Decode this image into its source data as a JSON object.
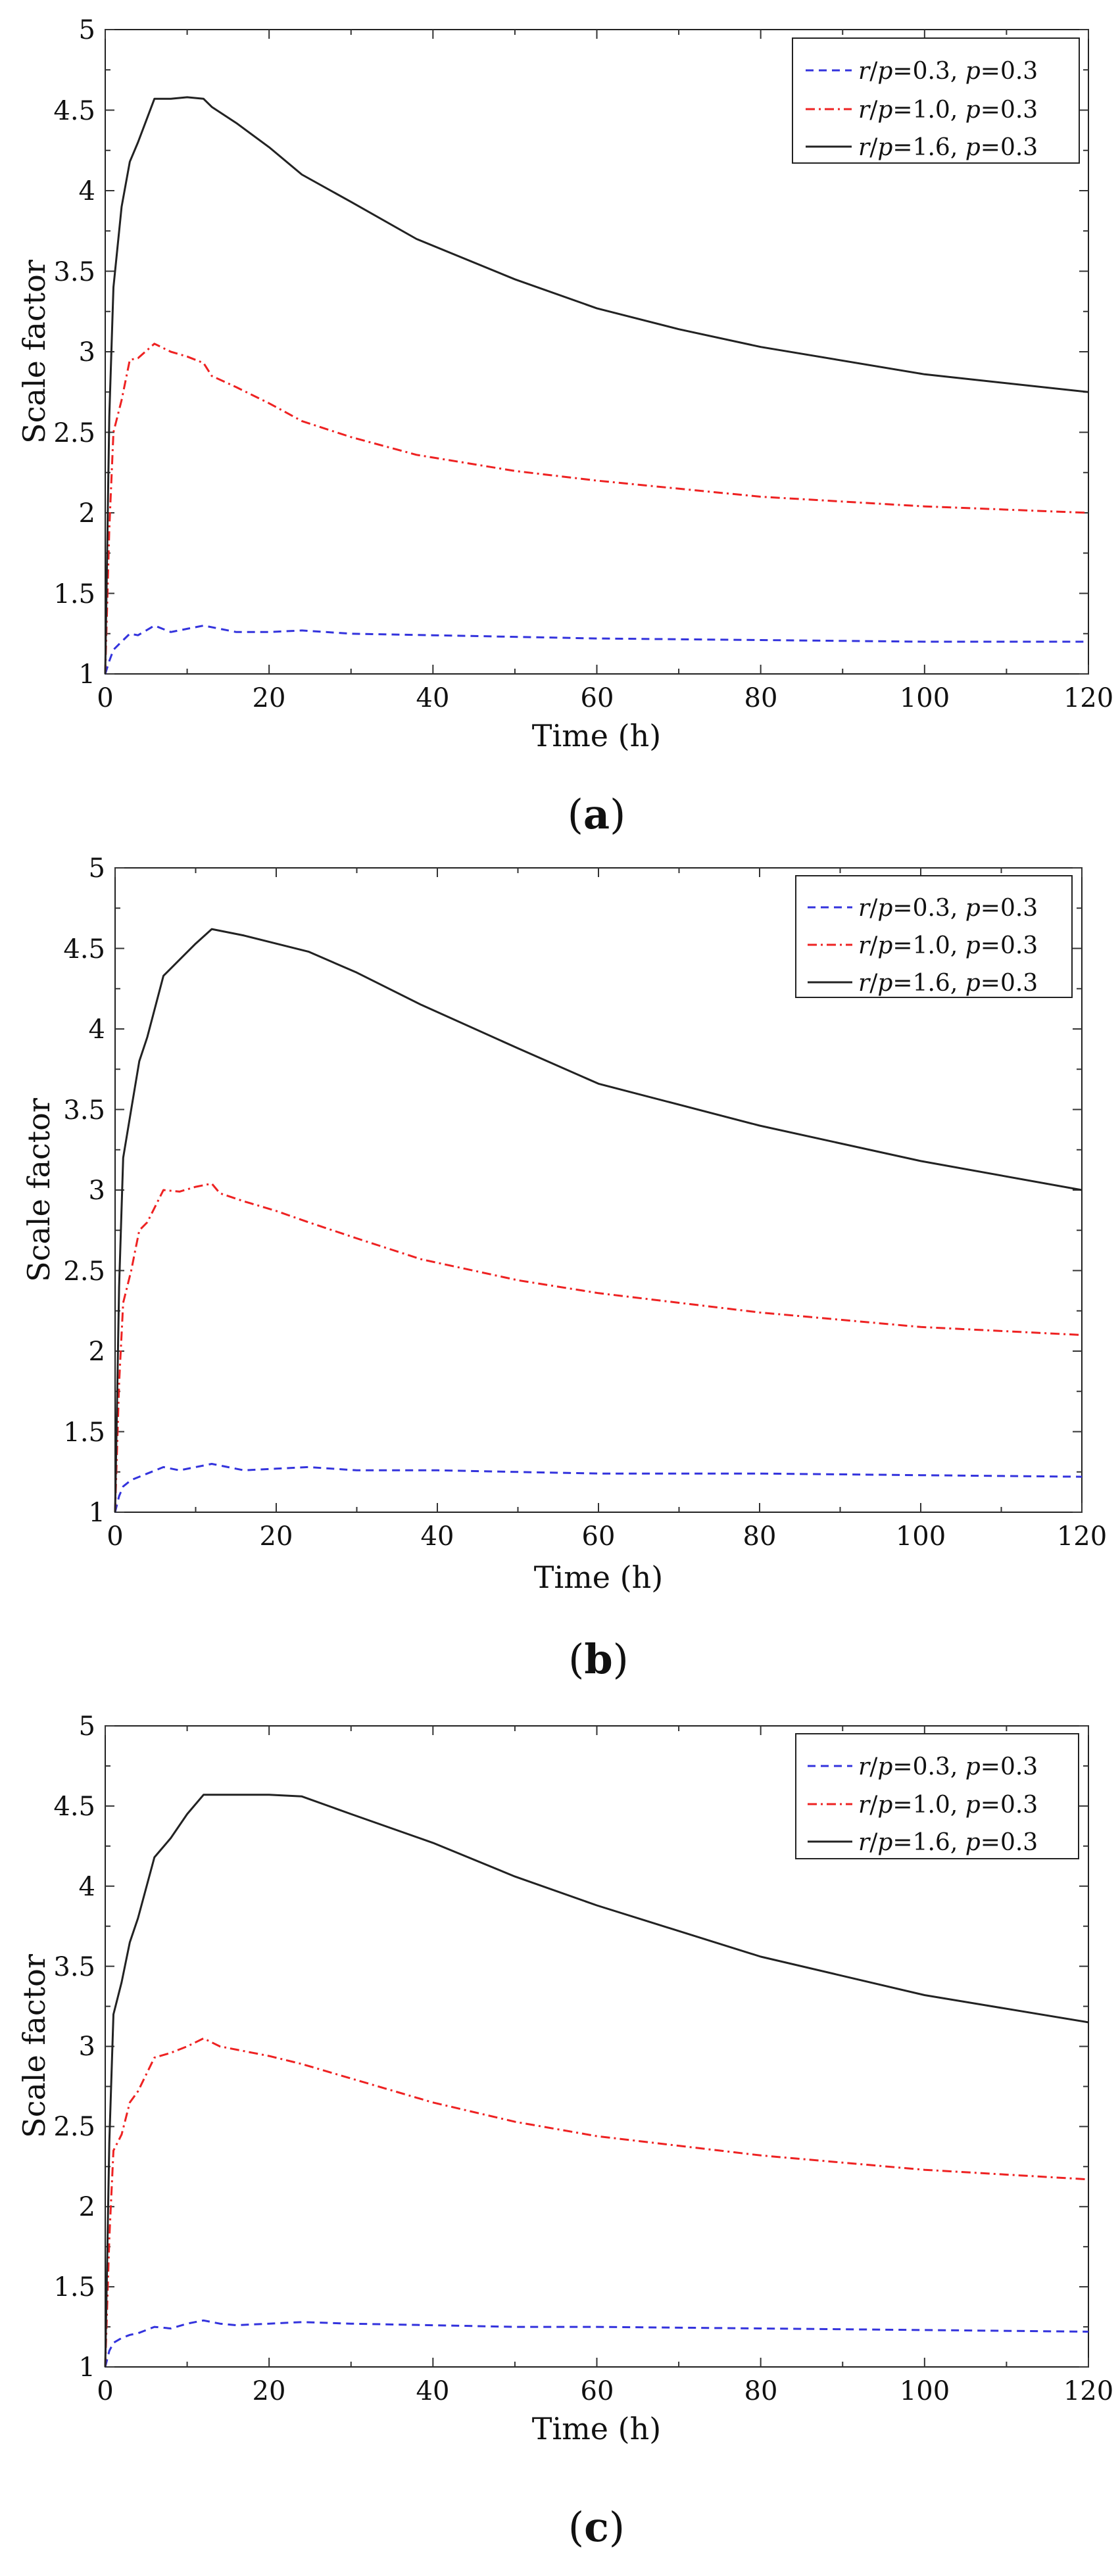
{
  "chart_data": [
    {
      "id": "a",
      "type": "line",
      "caption_letter": "a",
      "xlabel": "Time (h)",
      "ylabel": "Scale factor",
      "xlim": [
        0,
        120
      ],
      "ylim": [
        1,
        5
      ],
      "xticks": [
        0,
        20,
        40,
        60,
        80,
        100,
        120
      ],
      "yticks": [
        1,
        1.5,
        2,
        2.5,
        3,
        3.5,
        4,
        4.5,
        5
      ],
      "ytick_labels": [
        "1",
        "1.5",
        "2",
        "2.5",
        "3",
        "3.5",
        "4",
        "4.5",
        "5"
      ],
      "legend_position": "top-right",
      "series": [
        {
          "name": "r/p=0.3, p=0.3",
          "ratio_text": "0.3",
          "p_text": "0.3",
          "color": "#3333dd",
          "style": "dashed",
          "x": [
            0,
            0.5,
            1,
            2,
            3,
            4,
            6,
            8,
            10,
            12,
            14,
            16,
            20,
            24,
            30,
            40,
            50,
            60,
            80,
            100,
            120
          ],
          "y": [
            1.0,
            1.08,
            1.15,
            1.2,
            1.25,
            1.24,
            1.3,
            1.26,
            1.28,
            1.3,
            1.28,
            1.26,
            1.26,
            1.27,
            1.25,
            1.24,
            1.23,
            1.22,
            1.21,
            1.2,
            1.2
          ]
        },
        {
          "name": "r/p=1.0, p=0.3",
          "ratio_text": "1.0",
          "p_text": "0.3",
          "color": "#ee2222",
          "style": "dashdot",
          "x": [
            0,
            0.5,
            1,
            2,
            3,
            4,
            6,
            8,
            10,
            12,
            13,
            16,
            20,
            24,
            30,
            38,
            50,
            60,
            80,
            100,
            120
          ],
          "y": [
            1.0,
            1.9,
            2.5,
            2.7,
            2.95,
            2.96,
            3.05,
            3.0,
            2.97,
            2.93,
            2.85,
            2.78,
            2.68,
            2.57,
            2.47,
            2.36,
            2.26,
            2.2,
            2.1,
            2.04,
            2.0
          ]
        },
        {
          "name": "r/p=1.6, p=0.3",
          "ratio_text": "1.6",
          "p_text": "0.3",
          "color": "#222222",
          "style": "solid",
          "x": [
            0,
            0.5,
            1,
            2,
            3,
            4,
            6,
            8,
            10,
            12,
            13,
            16,
            20,
            24,
            30,
            38,
            50,
            60,
            70,
            80,
            100,
            120
          ],
          "y": [
            1.0,
            2.6,
            3.4,
            3.9,
            4.18,
            4.3,
            4.57,
            4.57,
            4.58,
            4.57,
            4.52,
            4.42,
            4.27,
            4.1,
            3.93,
            3.7,
            3.45,
            3.27,
            3.14,
            3.03,
            2.86,
            2.75
          ]
        }
      ]
    },
    {
      "id": "b",
      "type": "line",
      "caption_letter": "b",
      "xlabel": "Time (h)",
      "ylabel": "Scale factor",
      "xlim": [
        0,
        120
      ],
      "ylim": [
        1,
        5
      ],
      "xticks": [
        0,
        20,
        40,
        60,
        80,
        100,
        120
      ],
      "yticks": [
        1,
        1.5,
        2,
        2.5,
        3,
        3.5,
        4,
        4.5,
        5
      ],
      "ytick_labels": [
        "1",
        "1.5",
        "2",
        "2.5",
        "3",
        "3.5",
        "4",
        "4.5",
        "5"
      ],
      "legend_position": "top-right",
      "series": [
        {
          "name": "r/p=0.3, p=0.3",
          "ratio_text": "0.3",
          "p_text": "0.3",
          "color": "#3333dd",
          "style": "dashed",
          "x": [
            0,
            0.5,
            1,
            2,
            3,
            4,
            6,
            8,
            10,
            12,
            14,
            16,
            20,
            24,
            30,
            40,
            50,
            60,
            80,
            100,
            120
          ],
          "y": [
            1.0,
            1.1,
            1.16,
            1.2,
            1.22,
            1.24,
            1.28,
            1.26,
            1.28,
            1.3,
            1.28,
            1.26,
            1.27,
            1.28,
            1.26,
            1.26,
            1.25,
            1.24,
            1.24,
            1.23,
            1.22
          ]
        },
        {
          "name": "r/p=1.0, p=0.3",
          "ratio_text": "1.0",
          "p_text": "0.3",
          "color": "#ee2222",
          "style": "dashdot",
          "x": [
            0,
            0.5,
            1,
            2,
            3,
            4,
            6,
            8,
            10,
            12,
            13,
            16,
            20,
            24,
            30,
            38,
            50,
            60,
            80,
            100,
            120
          ],
          "y": [
            1.0,
            1.8,
            2.3,
            2.5,
            2.75,
            2.8,
            3.0,
            2.99,
            3.02,
            3.04,
            2.98,
            2.93,
            2.87,
            2.8,
            2.7,
            2.57,
            2.44,
            2.36,
            2.24,
            2.15,
            2.1
          ]
        },
        {
          "name": "r/p=1.6, p=0.3",
          "ratio_text": "1.6",
          "p_text": "0.3",
          "color": "#222222",
          "style": "solid",
          "x": [
            0,
            0.5,
            1,
            2,
            3,
            4,
            6,
            8,
            10,
            12,
            16,
            20,
            24,
            30,
            38,
            50,
            60,
            80,
            100,
            120
          ],
          "y": [
            1.0,
            2.4,
            3.2,
            3.5,
            3.8,
            3.95,
            4.33,
            4.43,
            4.53,
            4.62,
            4.58,
            4.53,
            4.48,
            4.35,
            4.15,
            3.88,
            3.66,
            3.4,
            3.18,
            3.0
          ]
        }
      ]
    },
    {
      "id": "c",
      "type": "line",
      "caption_letter": "c",
      "xlabel": "Time (h)",
      "ylabel": "Scale factor",
      "xlim": [
        0,
        120
      ],
      "ylim": [
        1,
        5
      ],
      "xticks": [
        0,
        20,
        40,
        60,
        80,
        100,
        120
      ],
      "yticks": [
        1,
        1.5,
        2,
        2.5,
        3,
        3.5,
        4,
        4.5,
        5
      ],
      "ytick_labels": [
        "1",
        "1.5",
        "2",
        "2.5",
        "3",
        "3.5",
        "4",
        "4.5",
        "5"
      ],
      "legend_position": "top-right",
      "series": [
        {
          "name": "r/p=0.3, p=0.3",
          "ratio_text": "0.3",
          "p_text": "0.3",
          "color": "#3333dd",
          "style": "dashed",
          "x": [
            0,
            0.5,
            1,
            2,
            3,
            4,
            6,
            8,
            10,
            12,
            14,
            16,
            20,
            24,
            30,
            40,
            50,
            60,
            80,
            100,
            120
          ],
          "y": [
            1.0,
            1.1,
            1.15,
            1.18,
            1.2,
            1.21,
            1.25,
            1.24,
            1.27,
            1.29,
            1.27,
            1.26,
            1.27,
            1.28,
            1.27,
            1.26,
            1.25,
            1.25,
            1.24,
            1.23,
            1.22
          ]
        },
        {
          "name": "r/p=1.0, p=0.3",
          "ratio_text": "1.0",
          "p_text": "0.3",
          "color": "#ee2222",
          "style": "dashdot",
          "x": [
            0,
            0.5,
            1,
            2,
            3,
            4,
            6,
            8,
            10,
            12,
            14,
            16,
            20,
            24,
            30,
            40,
            50,
            60,
            80,
            100,
            120
          ],
          "y": [
            1.0,
            1.8,
            2.35,
            2.45,
            2.65,
            2.72,
            2.93,
            2.96,
            3.0,
            3.05,
            3.0,
            2.98,
            2.94,
            2.89,
            2.8,
            2.65,
            2.53,
            2.44,
            2.32,
            2.23,
            2.17
          ]
        },
        {
          "name": "r/p=1.6, p=0.3",
          "ratio_text": "1.6",
          "p_text": "0.3",
          "color": "#222222",
          "style": "solid",
          "x": [
            0,
            0.5,
            1,
            2,
            3,
            4,
            6,
            8,
            10,
            12,
            16,
            20,
            24,
            30,
            40,
            50,
            60,
            80,
            100,
            120
          ],
          "y": [
            1.0,
            2.4,
            3.2,
            3.4,
            3.65,
            3.8,
            4.18,
            4.3,
            4.45,
            4.57,
            4.57,
            4.57,
            4.56,
            4.45,
            4.27,
            4.06,
            3.88,
            3.56,
            3.32,
            3.15
          ]
        }
      ]
    }
  ]
}
